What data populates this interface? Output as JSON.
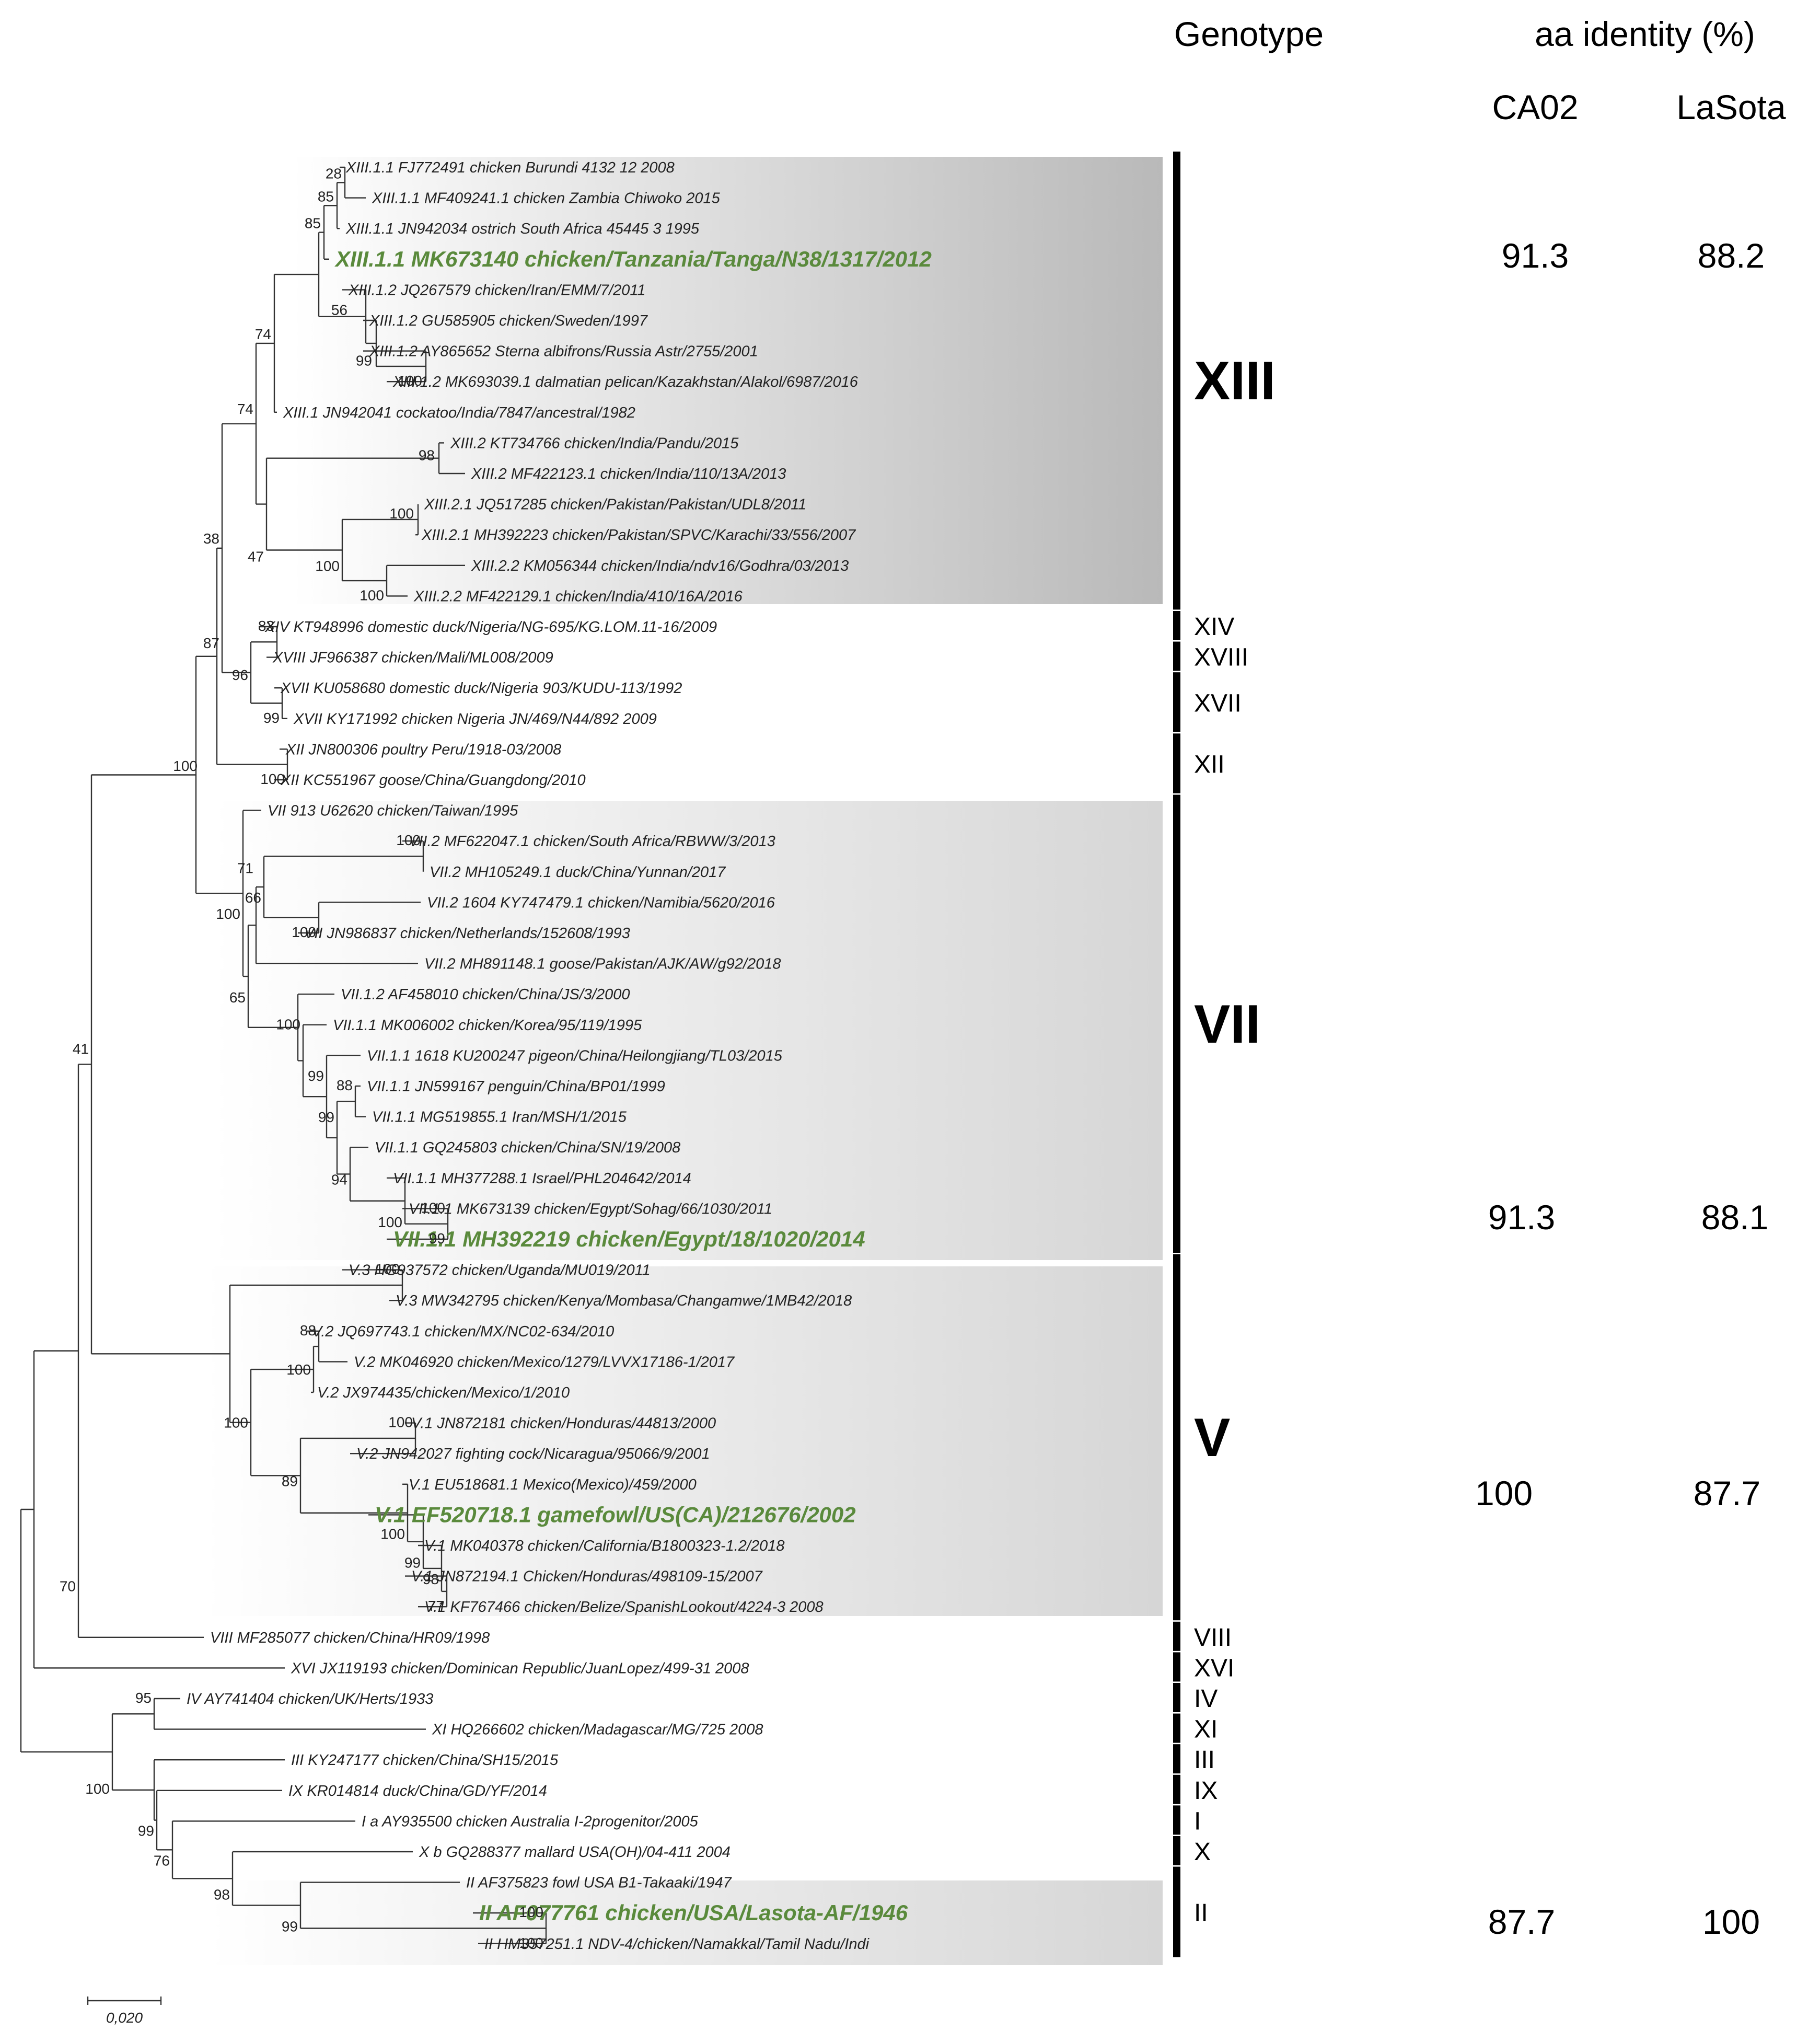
{
  "header": {
    "genotype": "Genotype",
    "identity_title": "aa identity (%)",
    "col_ca02": "CA02",
    "col_lasota": "LaSota"
  },
  "colors": {
    "highlight_green": "#5a8a3c",
    "clade_shade": "#b9b9b9",
    "branch": "#333333"
  },
  "scale_bar": {
    "label": "0,020",
    "value": 0.02
  },
  "leaves": [
    "XIII.1.1 FJ772491 chicken Burundi 4132 12 2008",
    "XIII.1.1 MF409241.1 chicken Zambia Chiwoko 2015",
    "XIII.1.1 JN942034 ostrich South Africa 45445 3 1995",
    "XIII.1.1 MK673140 chicken/Tanzania/Tanga/N38/1317/2012",
    "XIII.1.2 JQ267579 chicken/Iran/EMM/7/2011",
    "XIII.1.2 GU585905 chicken/Sweden/1997",
    "XIII.1.2 AY865652 Sterna albifrons/Russia Astr/2755/2001",
    "XIII.1.2 MK693039.1 dalmatian pelican/Kazakhstan/Alakol/6987/2016",
    "XIII.1 JN942041 cockatoo/India/7847/ancestral/1982",
    "XIII.2 KT734766 chicken/India/Pandu/2015",
    "XIII.2 MF422123.1 chicken/India/110/13A/2013",
    "XIII.2.1 JQ517285 chicken/Pakistan/Pakistan/UDL8/2011",
    "XIII.2.1 MH392223 chicken/Pakistan/SPVC/Karachi/33/556/2007",
    "XIII.2.2 KM056344 chicken/India/ndv16/Godhra/03/2013",
    "XIII.2.2 MF422129.1 chicken/India/410/16A/2016",
    "XIV  KT948996 domestic duck/Nigeria/NG-695/KG.LOM.11-16/2009",
    "XVIII JF966387 chicken/Mali/ML008/2009",
    "XVII KU058680 domestic duck/Nigeria 903/KUDU-113/1992",
    "XVII  KY171992 chicken Nigeria JN/469/N44/892 2009",
    "XII JN800306 poultry Peru/1918-03/2008",
    "XII KC551967 goose/China/Guangdong/2010",
    "VII 913 U62620 chicken/Taiwan/1995",
    "VII.2 MF622047.1 chicken/South Africa/RBWW/3/2013",
    "VII.2 MH105249.1 duck/China/Yunnan/2017",
    "VII.2 1604 KY747479.1 chicken/Namibia/5620/2016",
    "VII JN986837 chicken/Netherlands/152608/1993",
    "VII.2 MH891148.1 goose/Pakistan/AJK/AW/g92/2018",
    "VII.1.2 AF458010 chicken/China/JS/3/2000",
    "VII.1.1 MK006002 chicken/Korea/95/119/1995",
    "VII.1.1 1618 KU200247 pigeon/China/Heilongjiang/TL03/2015",
    "VII.1.1 JN599167 penguin/China/BP01/1999",
    "VII.1.1 MG519855.1 Iran/MSH/1/2015",
    "VII.1.1 GQ245803 chicken/China/SN/19/2008",
    "VII.1.1 MH377288.1 Israel/PHL204642/2014",
    "VII.1.1 MK673139 chicken/Egypt/Sohag/66/1030/2011",
    "VII.1.1 MH392219 chicken/Egypt/18/1020/2014",
    "V.3 HG937572 chicken/Uganda/MU019/2011",
    "V.3 MW342795 chicken/Kenya/Mombasa/Changamwe/1MB42/2018",
    "V.2 JQ697743.1 chicken/MX/NC02-634/2010",
    "V.2 MK046920 chicken/Mexico/1279/LVVX17186-1/2017",
    "V.2 JX974435/chicken/Mexico/1/2010",
    "V.1 JN872181 chicken/Honduras/44813/2000",
    "V.2 JN942027 fighting cock/Nicaragua/95066/9/2001",
    "V.1 EU518681.1 Mexico(Mexico)/459/2000",
    "V.1 EF520718.1 gamefowl/US(CA)/212676/2002",
    "V.1 MK040378 chicken/California/B1800323-1.2/2018",
    "V.1 JN872194.1 Chicken/Honduras/498109-15/2007",
    "V.1 KF767466 chicken/Belize/SpanishLookout/4224-3 2008",
    "VIII MF285077 chicken/China/HR09/1998",
    "XVI JX119193 chicken/Dominican Republic/JuanLopez/499-31 2008",
    "IV AY741404 chicken/UK/Herts/1933",
    "XI HQ266602 chicken/Madagascar/MG/725 2008",
    "III KY247177 chicken/China/SH15/2015",
    "IX KR014814 duck/China/GD/YF/2014",
    "I a AY935500 chicken Australia I-2progenitor/2005",
    "X b GQ288377 mallard USA(OH)/04-411 2004",
    "II AF375823 fowl USA B1-Takaaki/1947",
    "II AF077761 chicken/USA/Lasota-AF/1946",
    "II HM357251.1 NDV-4/chicken/Namakkal/Tamil Nadu/Indi"
  ],
  "bootstraps": [
    "28",
    "85",
    "85",
    "56",
    "99",
    "100",
    "74",
    "98",
    "100",
    "100",
    "100",
    "100",
    "47",
    "38",
    "83",
    "96",
    "99",
    "87",
    "100",
    "100",
    "100",
    "66",
    "100",
    "71",
    "100",
    "65",
    "100",
    "99",
    "88",
    "99",
    "94",
    "100",
    "100",
    "99",
    "41",
    "100",
    "88",
    "100",
    "100",
    "100",
    "89",
    "100",
    "99",
    "98",
    "77",
    "70",
    "95",
    "100",
    "99",
    "76",
    "98",
    "99",
    "100",
    "100"
  ],
  "genotypes": [
    {
      "label": "XIII",
      "size": "big"
    },
    {
      "label": "XIV",
      "size": "small"
    },
    {
      "label": "XVIII",
      "size": "small"
    },
    {
      "label": "XVII",
      "size": "small"
    },
    {
      "label": "XII",
      "size": "small"
    },
    {
      "label": "VII",
      "size": "big"
    },
    {
      "label": "V",
      "size": "big"
    },
    {
      "label": "VIII",
      "size": "small"
    },
    {
      "label": "XVI",
      "size": "small"
    },
    {
      "label": "IV",
      "size": "small"
    },
    {
      "label": "XI",
      "size": "small"
    },
    {
      "label": "III",
      "size": "small"
    },
    {
      "label": "IX",
      "size": "small"
    },
    {
      "label": "I",
      "size": "small"
    },
    {
      "label": "X",
      "size": "small"
    },
    {
      "label": "II",
      "size": "small"
    }
  ],
  "identity": [
    {
      "genotype": "XIII",
      "ca02": "91.3",
      "lasota": "88.2"
    },
    {
      "genotype": "VII",
      "ca02": "91.3",
      "lasota": "88.1"
    },
    {
      "genotype": "V",
      "ca02": "100",
      "lasota": "87.7"
    },
    {
      "genotype": "II",
      "ca02": "87.7",
      "lasota": "100"
    }
  ]
}
